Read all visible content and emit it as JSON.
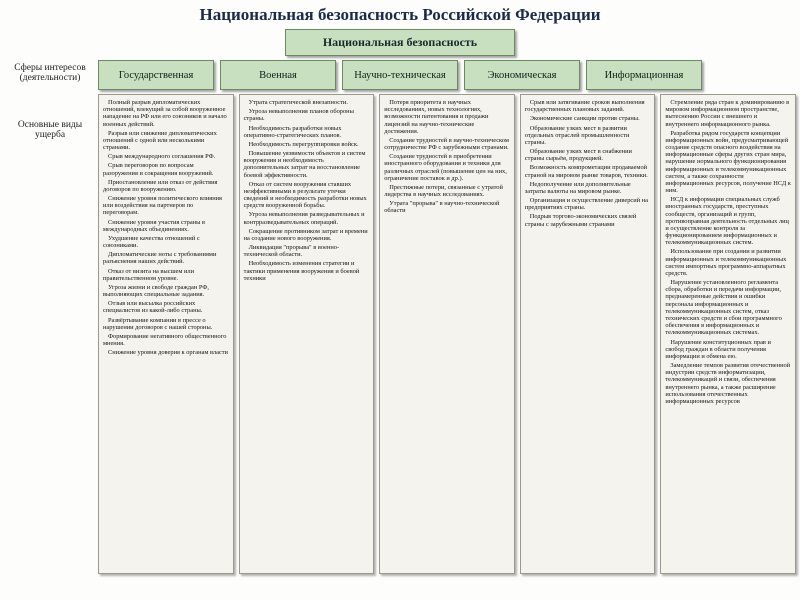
{
  "title": "Национальная безопасность Российской Федерации",
  "topBox": "Национальная безопасность",
  "sideLabels": {
    "spheres": "Сферы интересов (деятельности)",
    "damage": "Основные виды ущерба"
  },
  "categories": [
    "Государственная",
    "Военная",
    "Научно-техническая",
    "Экономическая",
    "Информационная"
  ],
  "colors": {
    "boxFill": "#c8e0c0",
    "boxBorder": "#6a8a60",
    "colFill": "#f4f3ee",
    "colBorder": "#9a9a8a",
    "pageBg": "#fdfdfb",
    "textDark": "#1a2a4a"
  },
  "columns": [
    [
      "Полный разрыв дипломатических отношений, влекущий за собой вооруженное нападение на РФ или его союзников и начало военных действий.",
      "Разрыв или снижение дипломатических отношений с одной или несколькими странами.",
      "Срыв международного соглашения РФ.",
      "Срыв переговоров по вопросам разоружения и сокращения вооружений.",
      "Приостановление или отказ от действия договоров по вооружению.",
      "Снижение уровня политического влияния или воздействия на партнеров по переговорам.",
      "Снижение уровня участия страны в международных объединениях.",
      "Ухудшение качества отношений с союзниками.",
      "Дипломатические ноты с требованиями разъяснения наших действий.",
      "Отказ от визита на высшем или правительственном уровне.",
      "Угроза жизни и свободе граждан РФ, выполняющих специальные задания.",
      "Отзыв или высылка российских специалистов из какой-либо страны.",
      "Развёртывание компании в прессе о нарушении договоров с нашей стороны.",
      "Формирование негативного общественного мнения.",
      "Снижение уровня доверия к органам власти"
    ],
    [
      "Утрата стратегической внезапности.",
      "Угроза невыполнения планов обороны страны.",
      "Необходимость разработки новых оперативно-стратегических планов.",
      "Необходимость перегруппировки войск.",
      "Повышение уязвимости объектов и систем вооружения и необходимость дополнительных затрат на восстановление боевой эффективности.",
      "Отказ от систем вооружения ставших неэффективными в результате утечки сведений и необходимость разработки новых средств вооруженной борьбы.",
      "Угроза невыполнения разведывательных и контрразведывательных операций.",
      "Сокращение противником затрат и времени на создание нового вооружения.",
      "Ликвидация \"прорыва\" в военно-технической области.",
      "Необходимость изменения стратегии и тактики применения вооружения и боевой техники"
    ],
    [
      "Потеря приоритета в научных исследованиях, новых технологиях, возможности патентования и продажи лицензий на научно-технические достижения.",
      "Создание трудностей в научно-техническом сотрудничестве РФ с зарубежными странами.",
      "Создание трудностей в приобретении иностранного оборудования и техники для различных отраслей (повышение цен на них, ограничение поставок и др.).",
      "Престижные потери, связанные с утратой лидерства в научных исследованиях.",
      "Утрата \"прорыва\" в научно-технической области"
    ],
    [
      "Срыв или затягивание сроков выполнения государственных плановых заданий.",
      "Экономические санкции против страны.",
      "Образование узких мест в развитии отдельных отраслей промышленности страны.",
      "Образование узких мест в снабжении страны сырьём, продукцией.",
      "Возможность компрометации продаваемой страной на мировом рынке товаров, техники.",
      "Недополучение или дополнительные затраты валюты на мировом рынке.",
      "Организация и осуществление диверсий на предприятиях страны.",
      "Подрыв торгово-экономических связей страны с зарубежными странами"
    ],
    [
      "Стремление ряда стран к доминированию в мировом информационном пространстве, вытеснению России с внешнего и внутреннего информационного рынка.",
      "Разработка рядом государств концепции информационных войн, предусматривающей создание средств опасного воздействия на информационные сферы других стран мира, нарушение нормального функционирования информационных и телекоммуникационных систем, а также сохранности информационных ресурсов, получение НСД к ним.",
      "НСД к информации специальных служб иностранных государств, преступных сообществ, организаций и групп, противоправная деятельность отдельных лиц и осуществление контроля за функционированием информационных и телекоммуникационных систем.",
      "Использование при создании и развитии информационных и телекоммуникационных систем импортных программно-аппаратных средств.",
      "Нарушение установленного регламента сбора, обработки и передачи информации, преднамеренные действия и ошибки персонала информационных и телекоммуникационных систем, отказ технических средств и сбои программного обеспечения в информационных и телекоммуникационных системах.",
      "Нарушение конституционных прав и свобод граждан в области получения информации и обмена ею.",
      "Замедление темпов развития отечественной индустрии средств информатизации, телекоммуникаций и связи, обеспечения внутреннего рынка, а также расширение использования отечественных информационных ресурсов"
    ]
  ]
}
